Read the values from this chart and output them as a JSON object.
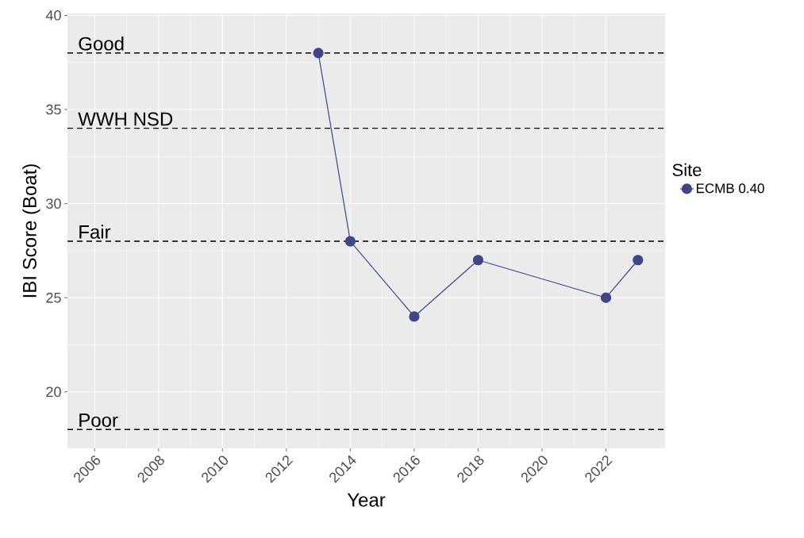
{
  "chart_data": {
    "type": "line",
    "xlabel": "Year",
    "ylabel": "IBI Score (Boat)",
    "legend_title": "Site",
    "x": [
      2013,
      2014,
      2016,
      2018,
      2022,
      2023
    ],
    "series": [
      {
        "name": "ECMB 0.40",
        "color": "#404788",
        "values": [
          38,
          28,
          24,
          27,
          25,
          27
        ]
      }
    ],
    "xlim": [
      2005.15,
      2023.85
    ],
    "ylim": [
      17,
      40.1
    ],
    "xticks": [
      2006,
      2008,
      2010,
      2012,
      2014,
      2016,
      2018,
      2020,
      2022
    ],
    "yticks": [
      20,
      25,
      30,
      35,
      40
    ],
    "ref_lines": [
      {
        "axis": "y",
        "value": 38,
        "label": "Good",
        "line_style": "dashed"
      },
      {
        "axis": "y",
        "value": 34,
        "label": "WWH NSD",
        "line_style": "dashed"
      },
      {
        "axis": "y",
        "value": 28,
        "label": "Fair",
        "line_style": "dashed"
      },
      {
        "axis": "y",
        "value": 18,
        "label": "Poor",
        "line_style": "dashed"
      }
    ],
    "grid": true,
    "legend": "right",
    "marker": "circle",
    "line_style": "solid"
  }
}
